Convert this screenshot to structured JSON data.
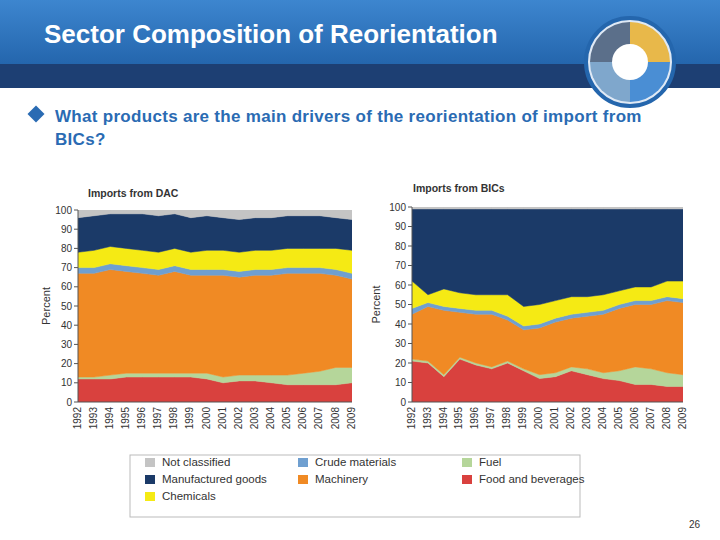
{
  "slide": {
    "title": "Sector Composition of Reorientation",
    "question": "What products are the main drivers of the reorientation of import from BICs?",
    "page_number": "26"
  },
  "chart_data": [
    {
      "type": "area",
      "title": "Imports from DAC",
      "y_label": "Percent",
      "stacked": true,
      "grid": false,
      "legend": "bottom",
      "categories": [
        "1992",
        "1993",
        "1994",
        "1995",
        "1996",
        "1997",
        "1998",
        "1999",
        "2000",
        "2001",
        "2002",
        "2003",
        "2004",
        "2005",
        "2006",
        "2007",
        "2008",
        "2009"
      ],
      "ylim": [
        0,
        100
      ],
      "yticks": [
        0,
        10,
        20,
        30,
        40,
        50,
        60,
        70,
        80,
        90,
        100
      ],
      "series": [
        {
          "name": "Food and beverages",
          "color": "#d9413e",
          "values": [
            12,
            12,
            12,
            13,
            13,
            13,
            13,
            13,
            12,
            10,
            11,
            11,
            10,
            9,
            9,
            9,
            9,
            10
          ]
        },
        {
          "name": "Fuel",
          "color": "#b5d69a",
          "values": [
            1,
            1,
            2,
            2,
            2,
            2,
            2,
            2,
            3,
            3,
            3,
            3,
            4,
            5,
            6,
            7,
            9,
            8
          ]
        },
        {
          "name": "Machinery",
          "color": "#f08a24",
          "values": [
            54,
            54,
            55,
            53,
            52,
            51,
            53,
            51,
            51,
            53,
            51,
            52,
            52,
            53,
            52,
            51,
            48,
            46
          ]
        },
        {
          "name": "Crude materials",
          "color": "#6f9fd0",
          "values": [
            3,
            3,
            3,
            3,
            3,
            3,
            3,
            3,
            3,
            3,
            3,
            3,
            3,
            3,
            3,
            3,
            3,
            3
          ]
        },
        {
          "name": "Chemicals",
          "color": "#f5ea14",
          "values": [
            8,
            9,
            9,
            9,
            9,
            9,
            9,
            9,
            10,
            10,
            10,
            10,
            10,
            10,
            10,
            10,
            11,
            12
          ]
        },
        {
          "name": "Manufactured goods",
          "color": "#1b3a68",
          "values": [
            18,
            18,
            17,
            18,
            19,
            19,
            18,
            18,
            18,
            17,
            17,
            17,
            17,
            17,
            17,
            17,
            16,
            16
          ]
        },
        {
          "name": "Not classified",
          "color": "#c4c4c4",
          "values": [
            4,
            3,
            2,
            2,
            2,
            3,
            2,
            4,
            3,
            4,
            5,
            4,
            4,
            3,
            3,
            3,
            4,
            5
          ]
        }
      ]
    },
    {
      "type": "area",
      "title": "Imports from BICs",
      "y_label": "Percent",
      "stacked": true,
      "grid": false,
      "categories": [
        "1992",
        "1993",
        "1994",
        "1995",
        "1996",
        "1997",
        "1998",
        "1999",
        "2000",
        "2001",
        "2002",
        "2003",
        "2004",
        "2005",
        "2006",
        "2007",
        "2008",
        "2009"
      ],
      "ylim": [
        0,
        100
      ],
      "yticks": [
        0,
        10,
        20,
        30,
        40,
        50,
        60,
        70,
        80,
        90,
        100
      ],
      "series": [
        {
          "name": "Food and beverages",
          "color": "#d9413e",
          "values": [
            21,
            20,
            13,
            22,
            19,
            17,
            20,
            16,
            12,
            13,
            16,
            14,
            12,
            11,
            9,
            9,
            8,
            8
          ]
        },
        {
          "name": "Fuel",
          "color": "#b5d69a",
          "values": [
            1,
            1,
            1,
            1,
            1,
            1,
            1,
            1,
            2,
            2,
            2,
            3,
            3,
            5,
            9,
            8,
            7,
            6
          ]
        },
        {
          "name": "Machinery",
          "color": "#f08a24",
          "values": [
            23,
            28,
            33,
            23,
            25,
            27,
            21,
            20,
            24,
            26,
            25,
            27,
            30,
            32,
            32,
            33,
            37,
            37
          ]
        },
        {
          "name": "Crude materials",
          "color": "#6f9fd0",
          "values": [
            3,
            2,
            2,
            2,
            2,
            2,
            2,
            2,
            2,
            2,
            2,
            2,
            2,
            2,
            2,
            2,
            2,
            2
          ]
        },
        {
          "name": "Chemicals",
          "color": "#f5ea14",
          "values": [
            14,
            4,
            9,
            8,
            8,
            8,
            11,
            10,
            10,
            9,
            9,
            8,
            8,
            7,
            7,
            7,
            8,
            9
          ]
        },
        {
          "name": "Manufactured goods",
          "color": "#1b3a68",
          "values": [
            37,
            44,
            41,
            43,
            44,
            44,
            44,
            50,
            49,
            47,
            45,
            45,
            44,
            42,
            40,
            40,
            37,
            37
          ]
        },
        {
          "name": "Not classified",
          "color": "#c4c4c4",
          "values": [
            1,
            1,
            1,
            1,
            1,
            1,
            1,
            1,
            1,
            1,
            1,
            1,
            1,
            1,
            1,
            1,
            1,
            1
          ]
        }
      ]
    }
  ]
}
